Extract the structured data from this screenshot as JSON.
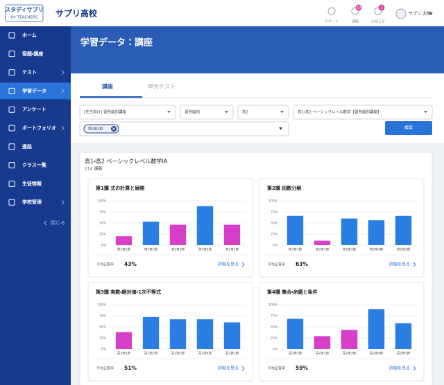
{
  "header": {
    "logo": "スタディサプリ",
    "logo_sub": "for TEACHERS",
    "school": "サプリ高校",
    "icons": [
      {
        "label": "サポート"
      },
      {
        "label": "連絡",
        "badge": "10"
      },
      {
        "label": "お知らせ",
        "badge": "3"
      }
    ],
    "user": "サプリ 太郎"
  },
  "sidebar": {
    "items": [
      "ホーム",
      "宿題・講座",
      "テスト",
      "学習データ",
      "アンケート",
      "ポートフォリオ",
      "進路",
      "クラス一覧",
      "生徒情報",
      "学校管理"
    ],
    "active": "学習データ",
    "close": "閉じる"
  },
  "page": {
    "title": "学習データ：講座",
    "tabs": [
      "講座",
      "単元テスト"
    ],
    "filters": [
      "[先生向け] 習熟度別講座",
      "習熟度別",
      "高2",
      "高1・高2 ベーシックレベル数学【習熟度別講座】"
    ],
    "chip": "第2章3節",
    "search": "検索"
  },
  "course": {
    "title": "高1・高2 ベーシックレベル数学IA",
    "count": "114 講義"
  },
  "chart_data": [
    {
      "type": "bar",
      "title": "第1講 式の計算と展開",
      "categories": [
        "第2章1節",
        "第2章2節",
        "第2章3節",
        "第2章4節",
        "第2章5節"
      ],
      "values": [
        20,
        53,
        46,
        88,
        46
      ],
      "colors": [
        "#d83fc8",
        "#2a7de1",
        "#d83fc8",
        "#2a7de1",
        "#d83fc8"
      ],
      "ylim": [
        0,
        100
      ],
      "yticks": [
        {
          "value": 0,
          "label": "0%"
        },
        {
          "value": 25,
          "label": "25%"
        },
        {
          "value": 50,
          "label": "50%"
        },
        {
          "value": 75,
          "label": "75%"
        },
        {
          "value": 100,
          "label": "100%"
        }
      ],
      "avg_label": "平均正答率",
      "avg_value": "43%",
      "link": "詳細を見る"
    },
    {
      "type": "bar",
      "title": "第2講 因数分解",
      "categories": [
        "第2章1節",
        "第2章2節",
        "第2章3節",
        "第2章4節",
        "第2章5節"
      ],
      "values": [
        66,
        10,
        60,
        56,
        66
      ],
      "colors": [
        "#2a7de1",
        "#d83fc8",
        "#2a7de1",
        "#2a7de1",
        "#2a7de1"
      ],
      "ylim": [
        0,
        100
      ],
      "yticks": [
        {
          "value": 0,
          "label": "0%"
        },
        {
          "value": 25,
          "label": "25%"
        },
        {
          "value": 50,
          "label": "50%"
        },
        {
          "value": 75,
          "label": "75%"
        },
        {
          "value": 100,
          "label": "100%"
        }
      ],
      "avg_label": "平均正答率",
      "avg_value": "63%",
      "link": "詳細を見る"
    },
    {
      "type": "bar",
      "title": "第3講 実数・絶対値・1次不等式",
      "categories": [
        "高2第1節",
        "高2第2節",
        "高2第3節",
        "高2第4節",
        "高2第5節"
      ],
      "values": [
        38,
        72,
        67,
        67,
        60
      ],
      "colors": [
        "#d83fc8",
        "#2a7de1",
        "#2a7de1",
        "#2a7de1",
        "#2a7de1"
      ],
      "ylim": [
        0,
        100
      ],
      "yticks": [
        {
          "value": 0,
          "label": "0%"
        },
        {
          "value": 25,
          "label": "25%"
        },
        {
          "value": 50,
          "label": "50%"
        },
        {
          "value": 75,
          "label": "75%"
        },
        {
          "value": 100,
          "label": "100%"
        }
      ],
      "avg_label": "平均正答率",
      "avg_value": "51%",
      "link": "詳細を見る"
    },
    {
      "type": "bar",
      "title": "第4講 集合・命題と条件",
      "categories": [
        "高2第1節",
        "高2第2節",
        "高2第3節",
        "高2第4節",
        "高2第5節"
      ],
      "values": [
        68,
        29,
        43,
        90,
        58
      ],
      "colors": [
        "#2a7de1",
        "#d83fc8",
        "#d83fc8",
        "#2a7de1",
        "#2a7de1"
      ],
      "ylim": [
        0,
        100
      ],
      "yticks": [
        {
          "value": 0,
          "label": "0%"
        },
        {
          "value": 25,
          "label": "25%"
        },
        {
          "value": 50,
          "label": "50%"
        },
        {
          "value": 75,
          "label": "75%"
        },
        {
          "value": 100,
          "label": "100%"
        }
      ],
      "avg_label": "平均正答率",
      "avg_value": "59%",
      "link": "詳細を見る"
    }
  ]
}
